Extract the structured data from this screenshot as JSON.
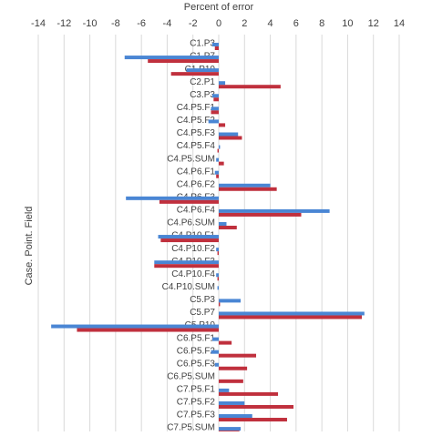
{
  "chart_data": {
    "type": "hbar",
    "title": "Percent of error",
    "y_label": "Case. Point. Field",
    "categories": [
      "C1.P3",
      "C1.P7",
      "C1.P10",
      "C2.P1",
      "C3.P3",
      "C4.P5.F1",
      "C4.P5.F2",
      "C4.P5.F3",
      "C4.P5.F4",
      "C4.P5.SUM",
      "C4.P6.F1",
      "C4.P6.F2",
      "C4.P6.F3",
      "C4.P6.F4",
      "C4.P6.SUM",
      "C4.P10.F1",
      "C4.P10.F2",
      "C4.P10.F3",
      "C4.P10.F4",
      "C4.P10.SUM",
      "C5.P3",
      "C5.P7",
      "C5.P10",
      "C6.P5.F1",
      "C6.P5.F2",
      "C6.P5.F3",
      "C6.P5.SUM",
      "C7.P5.F1",
      "C7.P5.F2",
      "C7.P5.F3",
      "C7.P5.SUM"
    ],
    "series": [
      {
        "color": "#4a86d4",
        "values": [
          -0.5,
          -7.3,
          -2.5,
          0.5,
          -0.5,
          -0.6,
          -0.8,
          1.5,
          0.1,
          -0.2,
          -0.3,
          4.0,
          -7.2,
          8.6,
          0.6,
          -4.7,
          -0.2,
          -5.0,
          -0.2,
          -0.1,
          1.7,
          11.3,
          -13.0,
          -0.5,
          -0.6,
          -0.3,
          0,
          0.8,
          2.0,
          2.6,
          1.7
        ]
      },
      {
        "color": "#c0303d",
        "values": [
          -0.3,
          -5.5,
          -3.7,
          4.8,
          -0.4,
          -0.6,
          0.5,
          1.8,
          -0.1,
          0.4,
          -0.2,
          4.5,
          -4.6,
          6.4,
          1.4,
          -4.5,
          -0.1,
          -5.0,
          -0.1,
          0.0,
          0.1,
          11.1,
          -11.0,
          1.0,
          2.9,
          2.2,
          1.9,
          4.6,
          5.8,
          5.3,
          1.6
        ]
      }
    ],
    "xlim": [
      -14,
      14
    ],
    "xticks": [
      -14,
      -12,
      -10,
      -8,
      -6,
      -4,
      -2,
      0,
      2,
      4,
      6,
      8,
      10,
      12,
      14
    ],
    "grid": true
  }
}
